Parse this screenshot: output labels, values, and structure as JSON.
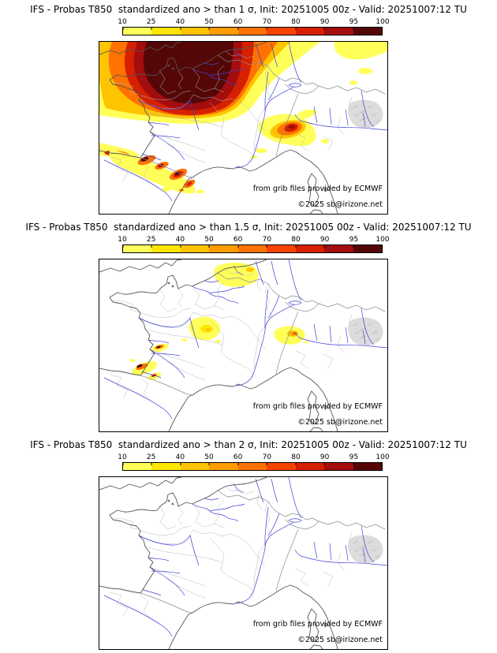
{
  "page": {
    "background": "#ffffff"
  },
  "colorbar": {
    "ticks": [
      "10",
      "25",
      "40",
      "50",
      "60",
      "70",
      "80",
      "90",
      "95",
      "100"
    ],
    "segment_colors": [
      "#ffff5a",
      "#ffe600",
      "#ffc400",
      "#ff9c00",
      "#ff7200",
      "#f74300",
      "#d62000",
      "#a30d0d",
      "#550707"
    ]
  },
  "map_style": {
    "coast_color": "#555555",
    "river_color": "#4040d8",
    "admin_color": "#b8b8b8",
    "country_border_color": "#8a8a8a",
    "terrain_color": "#d8d8d8"
  },
  "panels": [
    {
      "title": "IFS - Probas T850  standardized ano > than 1 σ, Init: 20251005 00z - Valid: 20251007:12 TU",
      "threshold": "1 σ",
      "credit": "from grib files provided by ECMWF",
      "copyright": "©2025 sb@irizone.net"
    },
    {
      "title": "IFS - Probas T850  standardized ano > than 1.5 σ, Init: 20251005 00z - Valid: 20251007:12 TU",
      "threshold": "1.5 σ",
      "credit": "from grib files provided by ECMWF",
      "copyright": "©2025 sb@irizone.net"
    },
    {
      "title": "IFS - Probas T850  standardized ano > than 2 σ, Init: 20251005 00z - Valid: 20251007:12 TU",
      "threshold": "2 σ",
      "credit": "from grib files provided by ECMWF",
      "copyright": "©2025 sb@irizone.net"
    }
  ]
}
